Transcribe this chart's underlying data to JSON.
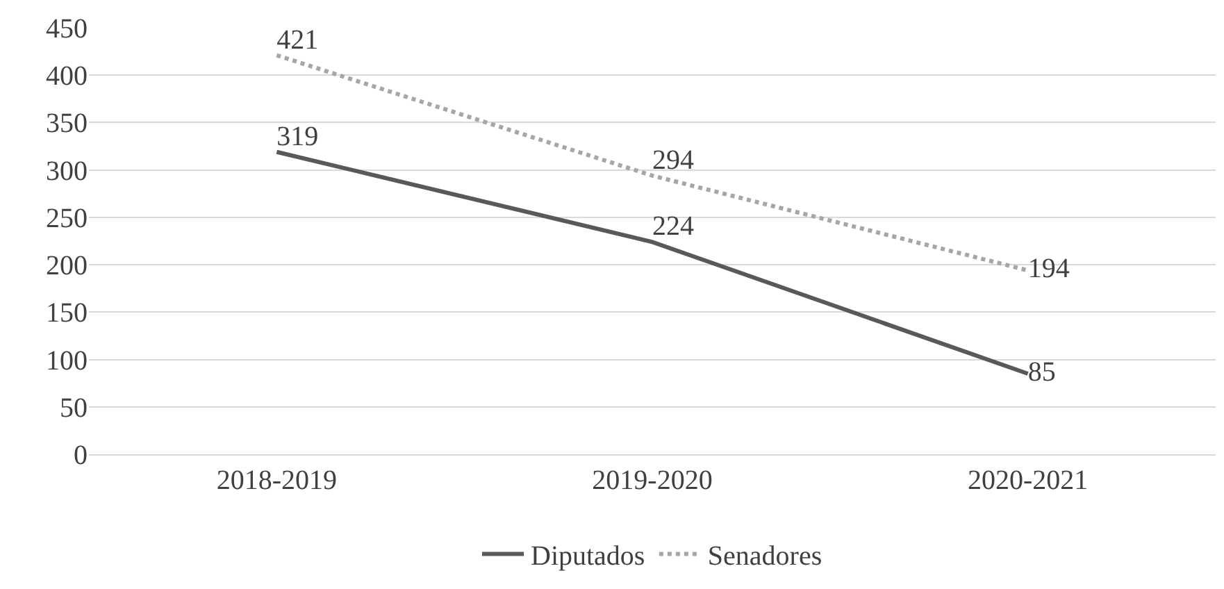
{
  "chart_data": {
    "type": "line",
    "categories": [
      "2018-2019",
      "2019-2020",
      "2020-2021"
    ],
    "series": [
      {
        "name": "Diputados",
        "color": "#595959",
        "values": [
          319,
          224,
          85
        ],
        "line_style": "solid"
      },
      {
        "name": "Senadores",
        "color": "#a6a6a6",
        "values": [
          421,
          294,
          194
        ],
        "line_style": "dotted"
      }
    ],
    "ylim": [
      0,
      450
    ],
    "yticks": [
      0,
      50,
      100,
      150,
      200,
      250,
      300,
      350,
      400,
      450
    ],
    "grid": "y",
    "legend": "bottom",
    "data_labels": true,
    "marker": "none"
  }
}
